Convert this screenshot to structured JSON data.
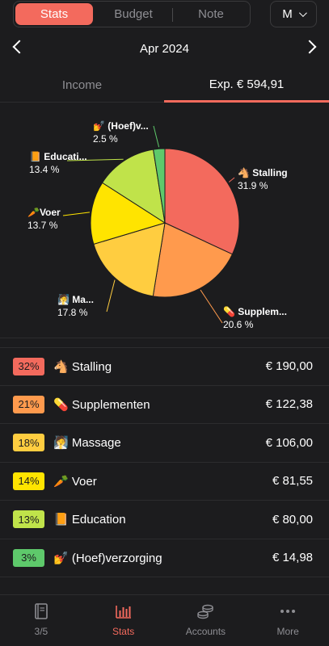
{
  "top": {
    "tabs": [
      "Stats",
      "Budget",
      "Note"
    ],
    "period": "M"
  },
  "nav": {
    "month": "Apr 2024"
  },
  "type_tabs": {
    "income": "Income",
    "expense": "Exp. € 594,91"
  },
  "chart_data": {
    "type": "pie",
    "slices": [
      {
        "label": "🐴 Stalling",
        "short_label": "🐴 Stalling",
        "percent": 31.9,
        "display": "31.9 %",
        "color": "#f36a5d"
      },
      {
        "label": "💊 Supplementen",
        "short_label": "💊 Supplem...",
        "percent": 20.6,
        "display": "20.6 %",
        "color": "#ff9a4d"
      },
      {
        "label": "🧖 Massage",
        "short_label": "🧖 Ma...",
        "percent": 17.8,
        "display": "17.8 %",
        "color": "#ffcd40"
      },
      {
        "label": "🥕Voer",
        "short_label": "🥕Voer",
        "percent": 13.7,
        "display": "13.7 %",
        "color": "#ffe400"
      },
      {
        "label": "📙 Education",
        "short_label": "📙 Educati...",
        "percent": 13.4,
        "display": "13.4 %",
        "color": "#c0e34a"
      },
      {
        "label": "💅 (Hoef)verzorging",
        "short_label": "💅 (Hoef)v...",
        "percent": 2.5,
        "display": "2.5 %",
        "color": "#5ec96b"
      }
    ]
  },
  "list": [
    {
      "pct": "32%",
      "label": "🐴  Stalling",
      "amount": "€ 190,00",
      "color": "#f36a5d"
    },
    {
      "pct": "21%",
      "label": "💊  Supplementen",
      "amount": "€ 122,38",
      "color": "#ff9a4d"
    },
    {
      "pct": "18%",
      "label": "🧖  Massage",
      "amount": "€ 106,00",
      "color": "#ffcd40"
    },
    {
      "pct": "14%",
      "label": "🥕 Voer",
      "amount": "€ 81,55",
      "color": "#ffe400"
    },
    {
      "pct": "13%",
      "label": "📙  Education",
      "amount": "€ 80,00",
      "color": "#c0e34a"
    },
    {
      "pct": "3%",
      "label": "💅  (Hoef)verzorging",
      "amount": "€ 14,98",
      "color": "#5ec96b"
    }
  ],
  "bottom_nav": [
    {
      "label": "3/5",
      "icon": "book-icon"
    },
    {
      "label": "Stats",
      "icon": "bar-chart-icon"
    },
    {
      "label": "Accounts",
      "icon": "coins-icon"
    },
    {
      "label": "More",
      "icon": "more-icon"
    }
  ],
  "colors": {
    "accent": "#f36a5d",
    "background": "#1c1c1e"
  }
}
